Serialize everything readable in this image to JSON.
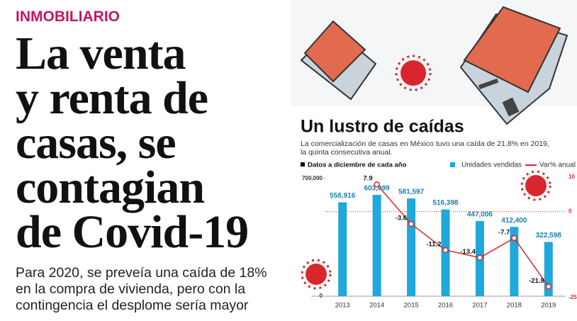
{
  "header": {
    "section": "INMOBILIARIO",
    "headline": [
      "La venta",
      "y renta de",
      "casas, se",
      "contagian",
      "de Covid-19"
    ],
    "subtitle": [
      "Para 2020, se preveía una caída de 18%",
      "en la compra de vivienda, pero con la",
      "contingencia el desplome sería mayor"
    ]
  },
  "chart_data": {
    "type": "bar",
    "title": "Un lustro de caídas",
    "description": [
      "La comercialización de casas en México tuvo una caída de 21.8% en 2019,",
      "la quinta consecutiva anual."
    ],
    "note": "Datos a diciembre de cada año",
    "categories": [
      "2013",
      "2014",
      "2015",
      "2016",
      "2017",
      "2018",
      "2019"
    ],
    "series": [
      {
        "name": "Unidades vendidas",
        "type": "bar",
        "color": "#1ea8dc",
        "values": [
          558916,
          603099,
          581597,
          516398,
          447006,
          412400,
          322598
        ],
        "value_labels": [
          "558,916",
          "603,099",
          "581,597",
          "516,398",
          "447,006",
          "412,400",
          "322,598"
        ]
      },
      {
        "name": "Var% anual",
        "type": "line",
        "axis": "y2",
        "color": "#d7262b",
        "values": [
          null,
          7.9,
          -3.6,
          -11.2,
          -13.4,
          -7.7,
          -21.8
        ]
      }
    ],
    "ylim": [
      0,
      700000
    ],
    "yticks": [
      {
        "value": 700000,
        "label": "700,000"
      },
      0
    ],
    "y2lim": [
      -25,
      10
    ],
    "y2ticks": [
      10,
      0,
      -25
    ]
  }
}
